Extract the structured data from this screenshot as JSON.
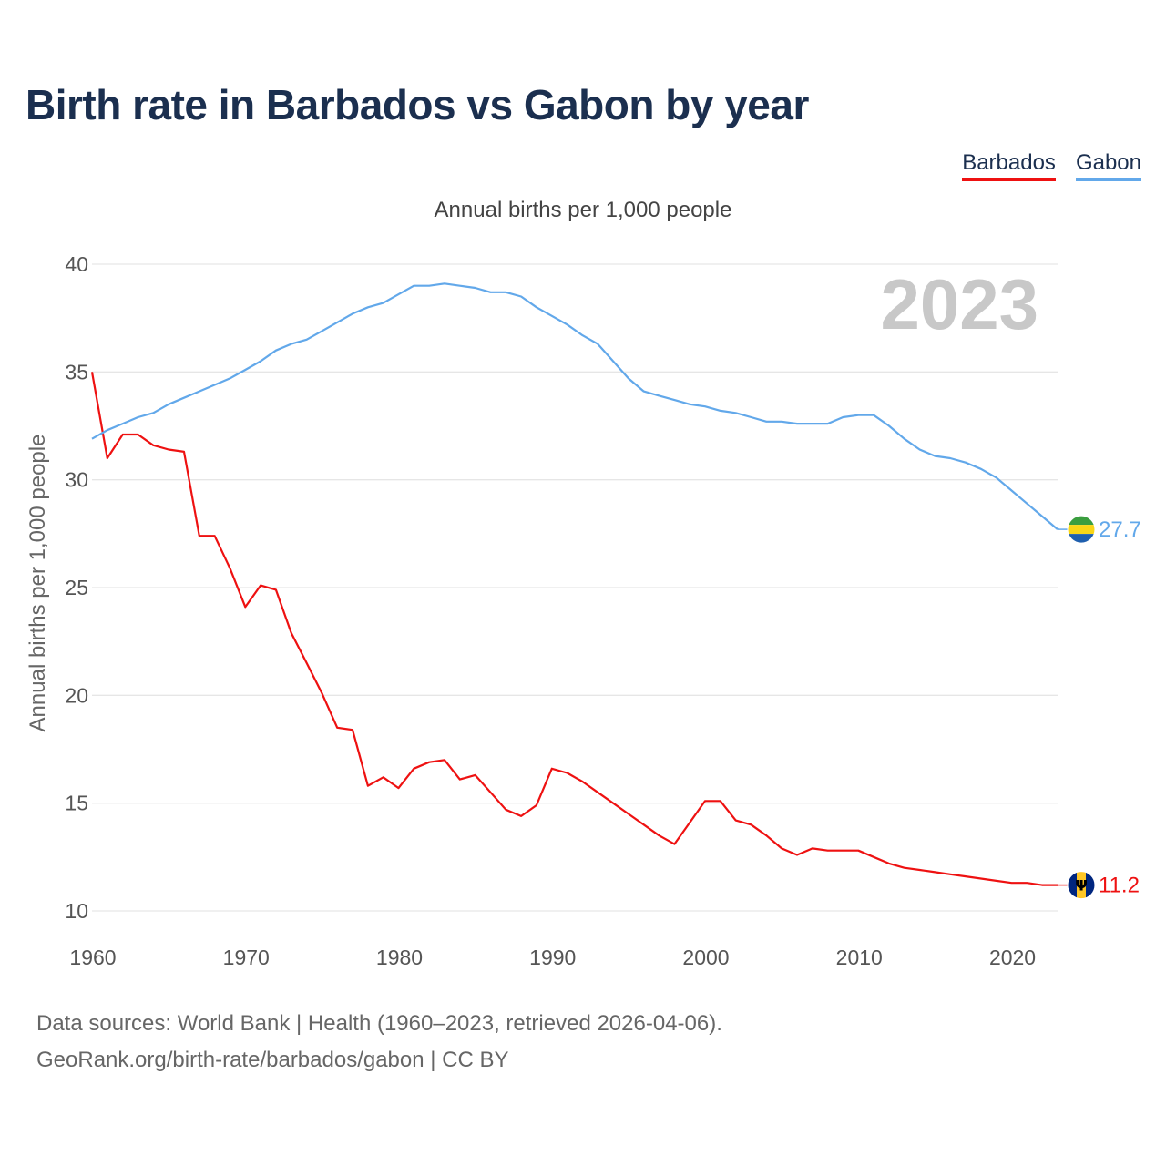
{
  "title": "Birth rate in Barbados vs Gabon by year",
  "legend": {
    "barbados_label": "Barbados",
    "gabon_label": "Gabon"
  },
  "colors": {
    "barbados": "#ee1111",
    "gabon": "#62a8ea",
    "title": "#1b2f4f"
  },
  "footer": {
    "line1": "Data sources: World Bank | Health (1960–2023, retrieved 2026-04-06).",
    "line2": "GeoRank.org/birth-rate/barbados/gabon | CC BY"
  },
  "chart_data": {
    "type": "line",
    "title": "Birth rate in Barbados vs Gabon by year",
    "subtitle": "Annual births per 1,000 people",
    "ylabel": "Annual births per 1,000 people",
    "xlabel": "",
    "year_label": "2023",
    "xlim": [
      1960,
      2023
    ],
    "ylim": [
      10,
      40
    ],
    "xticks": [
      1960,
      1970,
      1980,
      1990,
      2000,
      2010,
      2020
    ],
    "yticks": [
      10,
      15,
      20,
      25,
      30,
      35,
      40
    ],
    "grid": true,
    "legend_position": "top-right",
    "x": [
      1960,
      1961,
      1962,
      1963,
      1964,
      1965,
      1966,
      1967,
      1968,
      1969,
      1970,
      1971,
      1972,
      1973,
      1974,
      1975,
      1976,
      1977,
      1978,
      1979,
      1980,
      1981,
      1982,
      1983,
      1984,
      1985,
      1986,
      1987,
      1988,
      1989,
      1990,
      1991,
      1992,
      1993,
      1994,
      1995,
      1996,
      1997,
      1998,
      1999,
      2000,
      2001,
      2002,
      2003,
      2004,
      2005,
      2006,
      2007,
      2008,
      2009,
      2010,
      2011,
      2012,
      2013,
      2014,
      2015,
      2016,
      2017,
      2018,
      2019,
      2020,
      2021,
      2022,
      2023
    ],
    "series": [
      {
        "name": "Barbados",
        "color": "#ee1111",
        "end_label": "11.2",
        "values": [
          35.0,
          31.0,
          32.1,
          32.1,
          31.6,
          31.4,
          31.3,
          27.4,
          27.4,
          25.9,
          24.1,
          25.1,
          24.9,
          22.9,
          21.5,
          20.1,
          18.5,
          18.4,
          15.8,
          16.2,
          15.7,
          16.6,
          16.9,
          17.0,
          16.1,
          16.3,
          15.5,
          14.7,
          14.4,
          14.9,
          16.6,
          16.4,
          16.0,
          15.5,
          15.0,
          14.5,
          14.0,
          13.5,
          13.1,
          14.1,
          15.1,
          15.1,
          14.2,
          14.0,
          13.5,
          12.9,
          12.6,
          12.9,
          12.8,
          12.8,
          12.8,
          12.5,
          12.2,
          12.0,
          11.9,
          11.8,
          11.7,
          11.6,
          11.5,
          11.4,
          11.3,
          11.3,
          11.2,
          11.2
        ]
      },
      {
        "name": "Gabon",
        "color": "#62a8ea",
        "end_label": "27.7",
        "values": [
          31.9,
          32.3,
          32.6,
          32.9,
          33.1,
          33.5,
          33.8,
          34.1,
          34.4,
          34.7,
          35.1,
          35.5,
          36.0,
          36.3,
          36.5,
          36.9,
          37.3,
          37.7,
          38.0,
          38.2,
          38.6,
          39.0,
          39.0,
          39.1,
          39.0,
          38.9,
          38.7,
          38.7,
          38.5,
          38.0,
          37.6,
          37.2,
          36.7,
          36.3,
          35.5,
          34.7,
          34.1,
          33.9,
          33.7,
          33.5,
          33.4,
          33.2,
          33.1,
          32.9,
          32.7,
          32.7,
          32.6,
          32.6,
          32.6,
          32.9,
          33.0,
          33.0,
          32.5,
          31.9,
          31.4,
          31.1,
          31.0,
          30.8,
          30.5,
          30.1,
          29.5,
          28.9,
          28.3,
          27.7
        ]
      }
    ]
  }
}
